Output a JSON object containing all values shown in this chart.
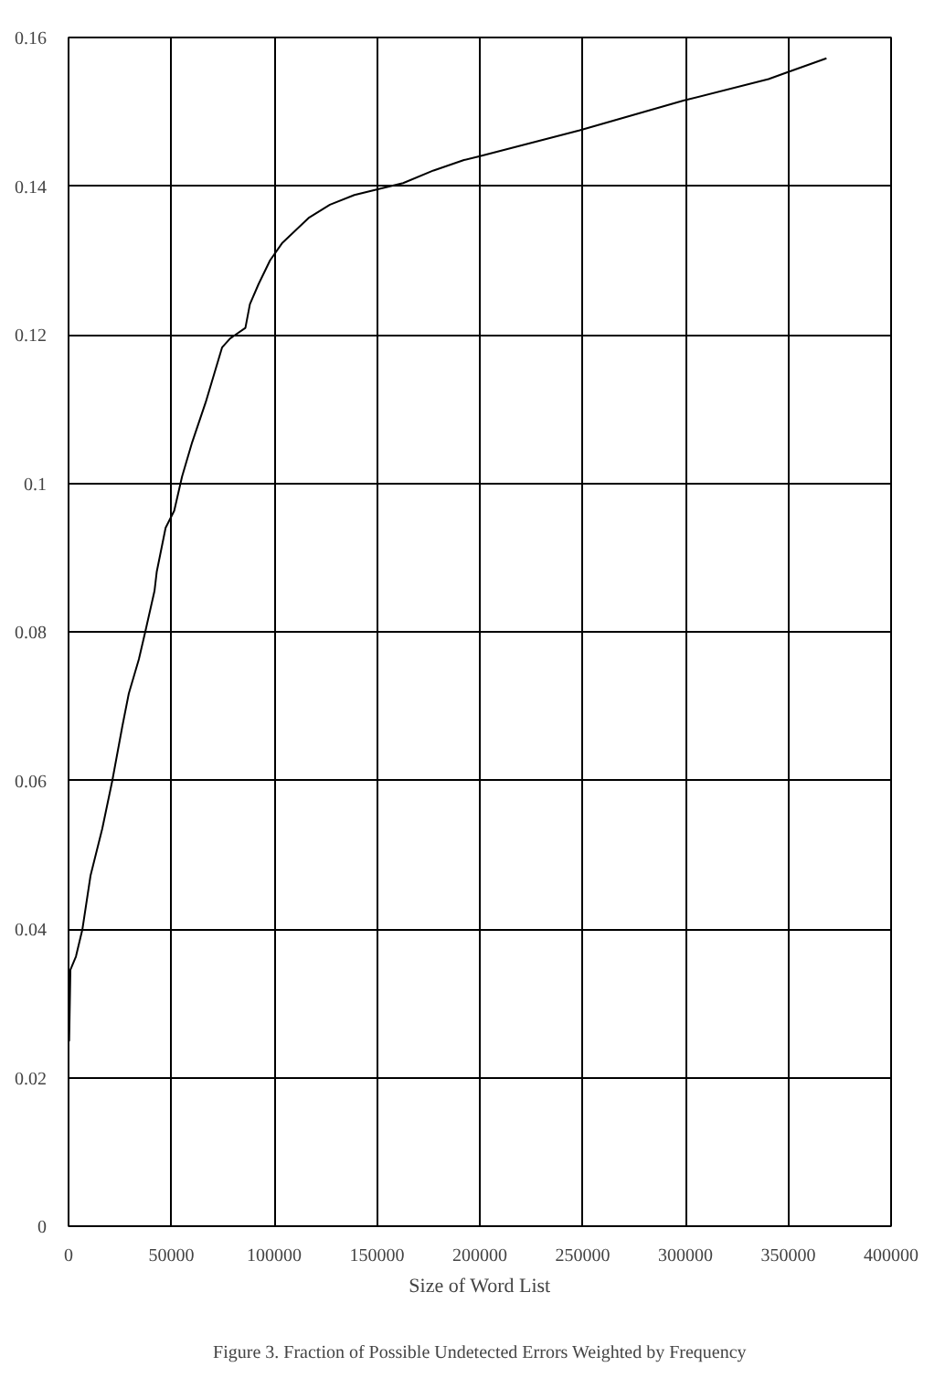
{
  "chart_data": {
    "type": "line",
    "xlabel": "Size of Word List",
    "annotations": [
      "Figure 3. Fraction of Possible Undetected Errors Weighted by Frequency"
    ],
    "x": [
      300,
      900,
      3600,
      6700,
      10700,
      16400,
      21300,
      26100,
      29300,
      34200,
      37300,
      41800,
      42900,
      47200,
      51400,
      55200,
      60100,
      66700,
      74700,
      78600,
      86000,
      88200,
      92400,
      98000,
      103800,
      116700,
      127100,
      139000,
      150800,
      162700,
      177500,
      192300,
      199700,
      248600,
      299000,
      340400,
      349300,
      368600
    ],
    "series": [
      {
        "color": "#000000",
        "values": [
          0.0249,
          0.0345,
          0.0363,
          0.0399,
          0.0472,
          0.0535,
          0.06,
          0.0672,
          0.0717,
          0.0763,
          0.08,
          0.0855,
          0.0881,
          0.094,
          0.0963,
          0.1009,
          0.1055,
          0.1109,
          0.1183,
          0.1195,
          0.1209,
          0.1241,
          0.1268,
          0.13,
          0.1323,
          0.1357,
          0.1375,
          0.1388,
          0.1396,
          0.1404,
          0.1421,
          0.1435,
          0.144,
          0.1475,
          0.1515,
          0.1544,
          0.1553,
          0.1572
        ]
      }
    ],
    "xlim": [
      0,
      400000
    ],
    "ylim": [
      0,
      0.16
    ],
    "xticks": [
      0,
      50000,
      100000,
      150000,
      200000,
      250000,
      300000,
      350000,
      400000
    ],
    "yticks": [
      0,
      0.02,
      0.04,
      0.06,
      0.08,
      0.1,
      0.12,
      0.14,
      0.16
    ],
    "grid": true,
    "marker": "none",
    "line_style": "solid"
  }
}
